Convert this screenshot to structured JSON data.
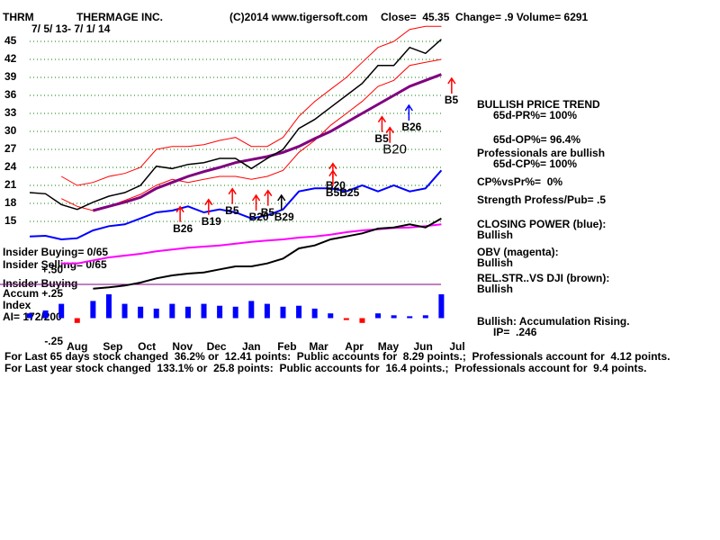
{
  "header": {
    "ticker": "THRM",
    "company": "THERMAGE INC.",
    "source": "(C)2014 www.tigersoft.com",
    "quote": "Close=  45.35  Change= .9 Volume= 6291",
    "date_range": "7/ 5/ 13- 7/ 1/ 14"
  },
  "left_labels": {
    "insider_buying": "Insider Buying= 0/65",
    "insider_selling": "Insider Selling= 0/65",
    "insider_buying_short": "Insider Buying",
    "accum": "Accum",
    "index": "Index",
    "ai": "AI= 172/200"
  },
  "summary": {
    "trend": "BULLISH PRICE TREND",
    "pr": "65d-PR%= 100%",
    "op": "65d-OP%= 96.4%",
    "pros": "Professionals are bullish",
    "cp": "65d-CP%= 100%",
    "cpvspr": "CP%vsPr%=  0%",
    "strength": "Strength Profess/Pub= .5",
    "closing_power": "CLOSING POWER (blue):",
    "closing_power_state": "Bullish",
    "obv": "OBV (magenta):",
    "obv_state": "Bullish",
    "relstr": "REL.STR..VS DJI (brown):",
    "relstr_state": "Bullish",
    "accum": "Bullish: Accumulation Rising.",
    "ip": "IP=  .246"
  },
  "footer": [
    "For Last 65 days stock changed  36.2% or  12.41 points:  Public accounts for  8.29 points.;  Professionals account for  4.12 points.",
    "For Last year stock changed  133.1% or  25.8 points:  Public accounts for  16.4 points.;  Professionals account for  9.4 points."
  ],
  "chart_data": [
    {
      "type": "line",
      "x": [
        0,
        2,
        4,
        6,
        8,
        10,
        12,
        14,
        16,
        18,
        20,
        22,
        24,
        26,
        28,
        30,
        32,
        34,
        36,
        38,
        40,
        42,
        44,
        46,
        48,
        50,
        52
      ],
      "xlim": [
        0,
        54
      ],
      "ylim": [
        3,
        47
      ],
      "yticks": [
        15,
        18,
        21,
        24,
        27,
        30,
        33,
        36,
        39,
        42,
        45
      ],
      "xticks": [
        {
          "value": 6,
          "label": "Aug"
        },
        {
          "value": 10.5,
          "label": "Sep"
        },
        {
          "value": 14.8,
          "label": "Oct"
        },
        {
          "value": 19.3,
          "label": "Nov"
        },
        {
          "value": 23.6,
          "label": "Dec"
        },
        {
          "value": 28,
          "label": "Jan"
        },
        {
          "value": 32.5,
          "label": "Feb"
        },
        {
          "value": 36.5,
          "label": "Mar"
        },
        {
          "value": 41,
          "label": "Apr"
        },
        {
          "value": 45.3,
          "label": "May"
        },
        {
          "value": 49.7,
          "label": "Jun"
        },
        {
          "value": 54,
          "label": "Jul"
        }
      ],
      "grid": true,
      "series": [
        {
          "color": "#ff0000",
          "line_width": 1,
          "values": [
            null,
            null,
            22.5,
            21.0,
            21.5,
            22.5,
            23.0,
            24.0,
            27.0,
            27.5,
            27.5,
            27.8,
            28.5,
            29.0,
            27.5,
            27.5,
            29.0,
            32.5,
            35.0,
            37.0,
            39.0,
            41.5,
            44.0,
            45.0,
            47.0,
            47.5,
            47.5
          ]
        },
        {
          "color": "#ff0000",
          "line_width": 1,
          "values": [
            null,
            null,
            18.8,
            17.5,
            16.8,
            17.5,
            18.5,
            19.5,
            21.0,
            22.0,
            21.5,
            22.0,
            22.5,
            22.5,
            22.0,
            22.5,
            23.5,
            26.5,
            28.5,
            31.0,
            33.0,
            35.0,
            37.5,
            38.5,
            41.0,
            41.5,
            42.0
          ]
        },
        {
          "color": "#800080",
          "line_width": 3,
          "values": [
            null,
            null,
            null,
            null,
            16.8,
            17.5,
            18.2,
            19.0,
            20.5,
            21.5,
            22.5,
            23.3,
            24.0,
            24.8,
            25.3,
            25.8,
            26.5,
            27.5,
            28.8,
            30.0,
            31.5,
            33.0,
            34.5,
            36.0,
            37.5,
            38.5,
            39.5
          ]
        },
        {
          "color": "#000000",
          "line_width": 1.5,
          "values": [
            19.8,
            19.6,
            17.8,
            17.0,
            18.2,
            19.2,
            19.8,
            21.0,
            24.2,
            23.8,
            24.5,
            24.8,
            25.5,
            25.5,
            23.8,
            25.5,
            27.0,
            30.5,
            32.0,
            34.0,
            36.0,
            38.0,
            41.0,
            41.0,
            44.0,
            43.0,
            45.35
          ]
        },
        {
          "color": "#0000ff",
          "line_width": 2,
          "values": [
            12.5,
            12.6,
            12.0,
            12.2,
            13.5,
            14.2,
            14.5,
            15.5,
            16.5,
            16.8,
            17.5,
            16.5,
            17.0,
            16.5,
            15.5,
            16.0,
            17.0,
            20.0,
            20.5,
            20.5,
            20.0,
            21.0,
            20.0,
            21.0,
            20.0,
            20.5,
            23.5
          ]
        },
        {
          "color": "#ff00ff",
          "line_width": 2,
          "values": [
            null,
            null,
            8.0,
            8.0,
            8.5,
            9.0,
            9.3,
            9.6,
            10.0,
            10.3,
            10.6,
            10.8,
            11.0,
            11.3,
            11.6,
            11.8,
            12.0,
            12.3,
            12.5,
            12.8,
            13.2,
            13.5,
            13.7,
            13.9,
            14.0,
            14.2,
            14.5
          ]
        },
        {
          "color": "#000000",
          "line_width": 2,
          "values": [
            null,
            null,
            null,
            null,
            3.8,
            4.0,
            4.3,
            4.8,
            5.5,
            6.0,
            6.3,
            6.5,
            7.0,
            7.5,
            7.5,
            8.0,
            8.8,
            10.5,
            11.0,
            12.0,
            12.5,
            13.0,
            13.8,
            14.0,
            14.5,
            14.0,
            15.5
          ]
        }
      ],
      "annotations": [
        {
          "text": "B26",
          "x": 19,
          "y": 13.7,
          "color": "#ff0000",
          "size": "normal"
        },
        {
          "text": "B19",
          "x": 22.6,
          "y": 14.9,
          "color": "#ff0000",
          "size": "normal"
        },
        {
          "text": "B5",
          "x": 25.6,
          "y": 16.7,
          "color": "#ff0000",
          "size": "normal"
        },
        {
          "text": "B20",
          "x": 28.6,
          "y": 15.6,
          "color": "#ff0000",
          "size": "normal"
        },
        {
          "text": "B5",
          "x": 30.1,
          "y": 16.4,
          "color": "#ff0000",
          "size": "normal"
        },
        {
          "text": "B29",
          "x": 31.8,
          "y": 15.6,
          "color": "#000000",
          "size": "normal"
        },
        {
          "text": "B20",
          "x": 38.3,
          "y": 20.9,
          "color": "#ff0000",
          "size": "normal"
        },
        {
          "text": "B5B25",
          "x": 38.3,
          "y": 19.7,
          "color": "#ff0000",
          "size": "normal"
        },
        {
          "text": "B5",
          "x": 44.5,
          "y": 28.7,
          "color": "#ff0000",
          "size": "normal"
        },
        {
          "text": "B20",
          "x": 45.5,
          "y": 26.9,
          "color": "#ff0000",
          "size": "large"
        },
        {
          "text": "B26",
          "x": 47.9,
          "y": 30.6,
          "color": "#0000ff",
          "size": "normal"
        },
        {
          "text": "B5",
          "x": 53.3,
          "y": 35.1,
          "color": "#ff0000",
          "size": "normal"
        }
      ]
    },
    {
      "type": "bar",
      "x": [
        0,
        2,
        4,
        6,
        8,
        10,
        12,
        14,
        16,
        18,
        20,
        22,
        24,
        26,
        28,
        30,
        32,
        34,
        36,
        38,
        40,
        42,
        44,
        46,
        48,
        50,
        52
      ],
      "values": [
        0.05,
        0.08,
        0.15,
        -0.05,
        0.18,
        0.25,
        0.15,
        0.12,
        0.1,
        0.15,
        0.12,
        0.15,
        0.13,
        0.12,
        0.18,
        0.15,
        0.12,
        0.13,
        0.1,
        0.05,
        -0.02,
        -0.05,
        0.05,
        0.03,
        0.02,
        0.03,
        0.25
      ],
      "colors": {
        "positive": "#0000ff",
        "negative": "#ff0000"
      },
      "xlim": [
        0,
        54
      ],
      "ylim": [
        -0.25,
        0.5
      ],
      "yticks": [
        {
          "value": -0.25,
          "label": "-.25"
        },
        {
          "value": 0.25,
          "label": "+.25"
        },
        {
          "value": 0.5,
          "label": "+.50"
        }
      ]
    }
  ]
}
